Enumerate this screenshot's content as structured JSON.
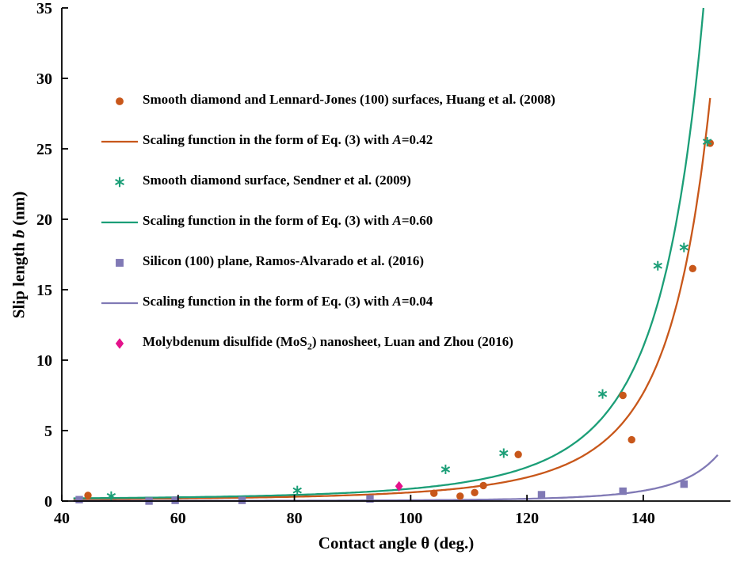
{
  "window": {
    "background": "#ffffff"
  },
  "chart_data": {
    "type": "scatter",
    "title": "",
    "xlabel": "Contact angle θ (deg.)",
    "ylabel": "Slip length b (nm)",
    "ylabel_parts": {
      "pre": "Slip length ",
      "italic": "b",
      "post": " (nm)"
    },
    "xlim": [
      40,
      155
    ],
    "ylim": [
      0,
      35
    ],
    "xticks": [
      40,
      60,
      80,
      100,
      120,
      140
    ],
    "yticks": [
      0,
      5,
      10,
      15,
      20,
      25,
      30,
      35
    ],
    "grid": false,
    "legend_position": "upper-left-inside",
    "scaling_function_form": "b = A/(1+cos(θ))²",
    "series": [
      {
        "name": "Smooth diamond and Lennard-Jones (100) surfaces, Huang et al. (2008)",
        "kind": "scatter",
        "marker": "circle",
        "color": "#C8571A",
        "points": [
          [
            44.5,
            0.4
          ],
          [
            104,
            0.55
          ],
          [
            108.5,
            0.35
          ],
          [
            111,
            0.6
          ],
          [
            112.5,
            1.1
          ],
          [
            118.5,
            3.3
          ],
          [
            136.5,
            7.5
          ],
          [
            138,
            4.35
          ],
          [
            148.5,
            16.5
          ],
          [
            151.5,
            25.4
          ]
        ]
      },
      {
        "name": "Scaling function in the form of Eq. (3) with A=0.42",
        "kind": "curve",
        "color": "#C8571A",
        "A": 0.42,
        "theta_range": [
          42,
          151.5
        ]
      },
      {
        "name": "Smooth diamond surface, Sendner et al. (2009)",
        "kind": "scatter",
        "marker": "asterisk",
        "color": "#1B9E77",
        "points": [
          [
            48.5,
            0.35
          ],
          [
            80.5,
            0.75
          ],
          [
            106,
            2.25
          ],
          [
            116,
            3.4
          ],
          [
            133,
            7.6
          ],
          [
            142.5,
            16.7
          ],
          [
            147,
            18
          ],
          [
            151,
            25.5
          ]
        ]
      },
      {
        "name": "Scaling function in the form of Eq. (3) with A=0.60",
        "kind": "curve",
        "color": "#1B9E77",
        "A": 0.6,
        "theta_range": [
          42,
          150.8
        ]
      },
      {
        "name": "Silicon (100) plane, Ramos-Alvarado et al. (2016)",
        "kind": "scatter",
        "marker": "square",
        "color": "#8079B5",
        "points": [
          [
            43,
            0.1
          ],
          [
            55,
            0
          ],
          [
            59.5,
            0.05
          ],
          [
            71,
            0.05
          ],
          [
            93,
            0.15
          ],
          [
            122.5,
            0.45
          ],
          [
            136.5,
            0.7
          ],
          [
            147,
            1.2
          ]
        ]
      },
      {
        "name": "Scaling function in the form of Eq. (3) with A=0.04",
        "kind": "curve",
        "color": "#8079B5",
        "A": 0.04,
        "theta_range": [
          42,
          152.8
        ]
      },
      {
        "name": "Molybdenum disulfide (MoS2) nanosheet, Luan and Zhou (2016)",
        "kind": "scatter",
        "marker": "diamond",
        "color": "#E4128B",
        "points": [
          [
            98,
            1.05
          ]
        ]
      }
    ]
  },
  "legend": {
    "items": [
      {
        "marker": "circle",
        "color": "#C8571A",
        "pre": "Smooth diamond and Lennard-Jones (100) surfaces, Huang et al. (2008)",
        "italic": "",
        "sub": "",
        "post": ""
      },
      {
        "marker": "line",
        "color": "#C8571A",
        "pre": "Scaling function in the form of Eq. (3) with ",
        "italic": "A",
        "sub": "",
        "post": "=0.42"
      },
      {
        "marker": "asterisk",
        "color": "#1B9E77",
        "pre": "Smooth diamond surface, Sendner et al. (2009)",
        "italic": "",
        "sub": "",
        "post": ""
      },
      {
        "marker": "line",
        "color": "#1B9E77",
        "pre": "Scaling function in the form of Eq. (3) with ",
        "italic": "A",
        "sub": "",
        "post": "=0.60"
      },
      {
        "marker": "square",
        "color": "#8079B5",
        "pre": "Silicon (100) plane, Ramos-Alvarado et al. (2016)",
        "italic": "",
        "sub": "",
        "post": ""
      },
      {
        "marker": "line",
        "color": "#8079B5",
        "pre": "Scaling function in the form of Eq. (3) with ",
        "italic": "A",
        "sub": "",
        "post": "=0.04"
      },
      {
        "marker": "diamond",
        "color": "#E4128B",
        "pre": "Molybdenum disulfide (MoS",
        "italic": "",
        "sub": "2",
        "post": ") nanosheet, Luan and Zhou (2016)"
      }
    ]
  }
}
